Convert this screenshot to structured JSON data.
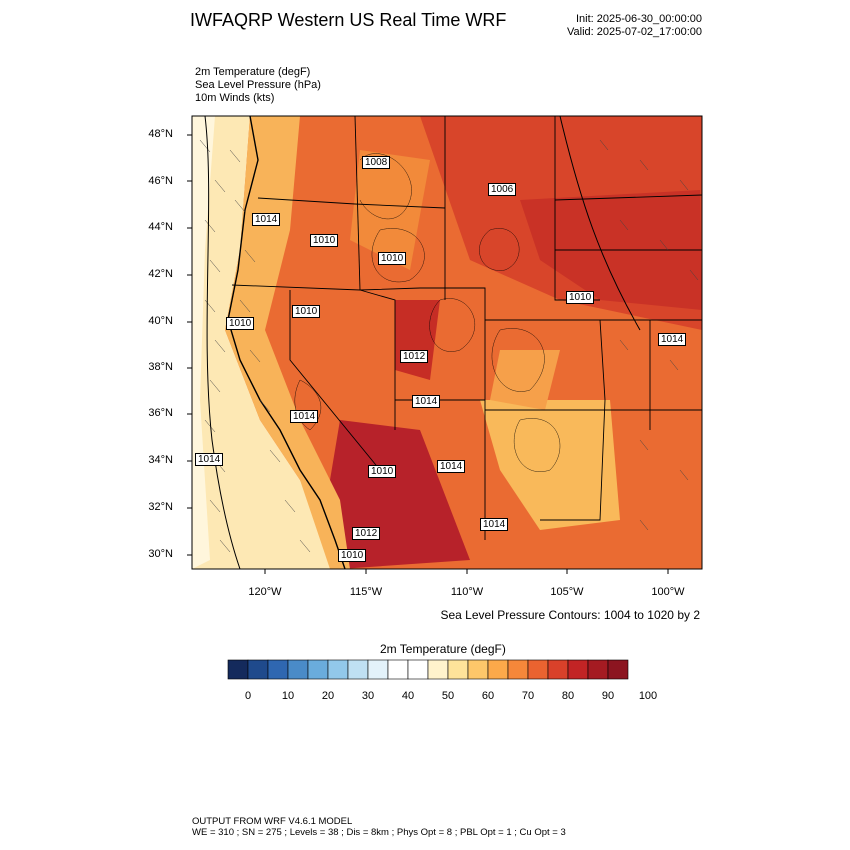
{
  "header": {
    "title": "IWFAQRP Western US Real Time WRF",
    "init": "Init: 2025-06-30_00:00:00",
    "valid": "Valid: 2025-07-02_17:00:00"
  },
  "fields": [
    "2m Temperature   (degF)",
    "Sea Level Pressure   (hPa)",
    "10m Winds   (kts)"
  ],
  "map": {
    "lat_ticks": [
      "48°N",
      "46°N",
      "44°N",
      "42°N",
      "40°N",
      "38°N",
      "36°N",
      "34°N",
      "32°N",
      "30°N"
    ],
    "lon_ticks": [
      "120°W",
      "115°W",
      "110°W",
      "105°W",
      "100°W"
    ],
    "slp_labels": [
      "1014",
      "1010",
      "1010",
      "1010",
      "1014",
      "1008",
      "1010",
      "1006",
      "1010",
      "1014",
      "1012",
      "1014",
      "1010",
      "1014",
      "1014",
      "1014",
      "1012",
      "1010"
    ]
  },
  "contour_note": "Sea Level Pressure Contours: 1004 to 1020 by 2",
  "colorbar": {
    "title": "2m Temperature  (degF)",
    "labels": [
      "0",
      "10",
      "20",
      "30",
      "40",
      "50",
      "60",
      "70",
      "80",
      "90",
      "100"
    ],
    "colors": [
      "#142a5c",
      "#1f4a8c",
      "#2f67b1",
      "#4a8bc8",
      "#6aacdc",
      "#92c8ea",
      "#bfe0f3",
      "#e3f2fa",
      "#ffffff",
      "#ffffff",
      "#fff3cc",
      "#fee39a",
      "#fdc76a",
      "#fca94a",
      "#f5873a",
      "#ea6330",
      "#d9412a",
      "#c22425",
      "#a51b22",
      "#8c1520"
    ]
  },
  "footer": {
    "line1": "OUTPUT FROM WRF V4.6.1 MODEL",
    "line2": "WE = 310 ; SN = 275 ; Levels = 38 ; Dis = 8km ; Phys Opt = 8 ; PBL Opt = 1 ; Cu Opt = 3"
  }
}
